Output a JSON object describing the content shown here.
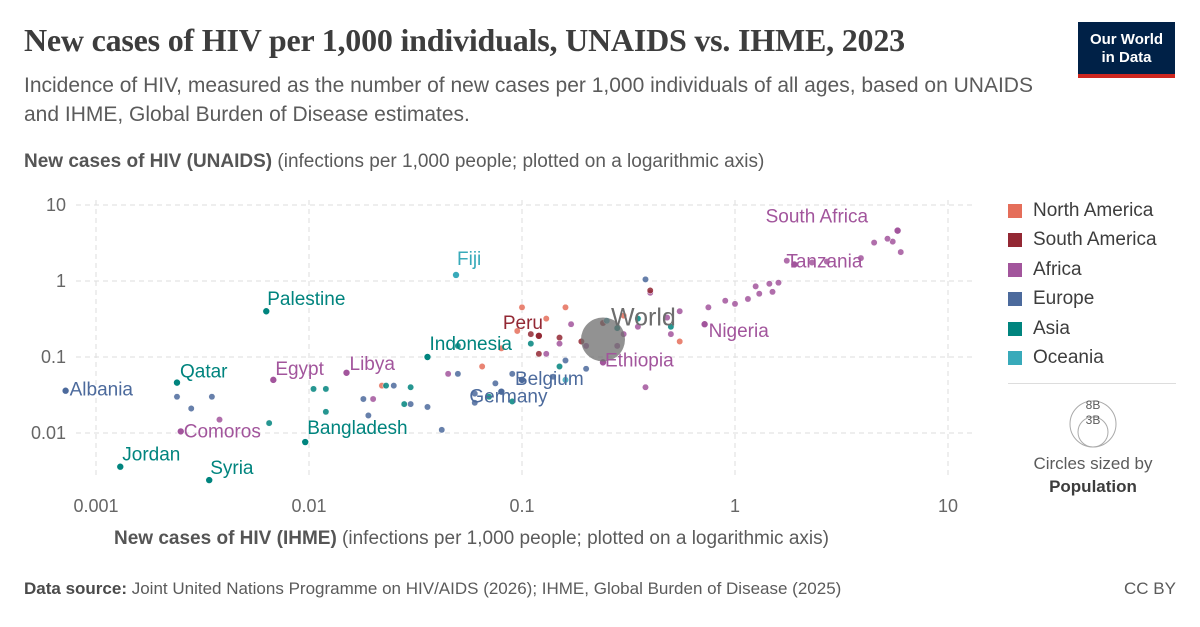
{
  "header": {
    "title": "New cases of HIV per 1,000 individuals, UNAIDS vs. IHME, 2023",
    "subtitle": "Incidence of HIV, measured as the number of new cases per 1,000 individuals of all ages, based on UNAIDS and IHME, Global Burden of Disease estimates."
  },
  "logo": {
    "line1": "Our World",
    "line2": "in Data",
    "bg": "#002147",
    "accent": "#ce261e"
  },
  "axis_labels": {
    "y_bold": "New cases of HIV (UNAIDS)",
    "y_rest": " (infections per 1,000 people; plotted on a logarithmic axis)",
    "x_bold": "New cases of HIV (IHME)",
    "x_rest": " (infections per 1,000 people; plotted on a logarithmic axis)"
  },
  "legend": {
    "items": [
      {
        "label": "North America",
        "color": "#E56E5A"
      },
      {
        "label": "South America",
        "color": "#932834"
      },
      {
        "label": "Africa",
        "color": "#A2559C"
      },
      {
        "label": "Europe",
        "color": "#4C6A9C"
      },
      {
        "label": "Asia",
        "color": "#00847E"
      },
      {
        "label": "Oceania",
        "color": "#38AABA"
      }
    ],
    "size_big": "8B",
    "size_small": "3B",
    "size_caption": "Circles sized by",
    "size_metric": "Population"
  },
  "footer": {
    "source_label": "Data source:",
    "source_text": " Joint United Nations Programme on HIV/AIDS (2026); IHME, Global Burden of Disease (2025)",
    "license": "CC BY"
  },
  "chart_data": {
    "type": "scatter",
    "x_scale": "log",
    "y_scale": "log",
    "xlim": [
      0.0007,
      10
    ],
    "ylim": [
      0.002,
      10
    ],
    "x_ticks": [
      0.001,
      0.01,
      0.1,
      1,
      10
    ],
    "x_tick_labels": [
      "0.001",
      "0.01",
      "0.1",
      "1",
      "10"
    ],
    "y_ticks": [
      0.01,
      0.1,
      1,
      10
    ],
    "y_tick_labels": [
      "0.01",
      "0.1",
      "1",
      "10"
    ],
    "grid": true,
    "legend_position": "right",
    "region_colors": {
      "North America": "#E56E5A",
      "South America": "#932834",
      "Africa": "#A2559C",
      "Europe": "#4C6A9C",
      "Asia": "#00847E",
      "Oceania": "#38AABA",
      "World": "#6D6D6D"
    },
    "labeled_points": [
      {
        "label": "South Africa",
        "region": "Africa",
        "x": 5.8,
        "y": 4.6
      },
      {
        "label": "Tanzania",
        "region": "Africa",
        "x": 1.9,
        "y": 1.65
      },
      {
        "label": "Nigeria",
        "region": "Africa",
        "x": 0.72,
        "y": 0.27
      },
      {
        "label": "Ethiopia",
        "region": "Africa",
        "x": 0.24,
        "y": 0.085
      },
      {
        "label": "Fiji",
        "region": "Oceania",
        "x": 0.049,
        "y": 1.2
      },
      {
        "label": "World",
        "region": "World",
        "x": 0.24,
        "y": 0.17,
        "world": true
      },
      {
        "label": "Peru",
        "region": "South America",
        "x": 0.12,
        "y": 0.19
      },
      {
        "label": "Indonesia",
        "region": "Asia",
        "x": 0.036,
        "y": 0.1
      },
      {
        "label": "Palestine",
        "region": "Asia",
        "x": 0.0063,
        "y": 0.4
      },
      {
        "label": "Egypt",
        "region": "Africa",
        "x": 0.0068,
        "y": 0.05
      },
      {
        "label": "Libya",
        "region": "Africa",
        "x": 0.015,
        "y": 0.062
      },
      {
        "label": "Qatar",
        "region": "Asia",
        "x": 0.0024,
        "y": 0.046
      },
      {
        "label": "Albania",
        "region": "Europe",
        "x": 0.00072,
        "y": 0.036
      },
      {
        "label": "Germany",
        "region": "Europe",
        "x": 0.08,
        "y": 0.035
      },
      {
        "label": "Belgium",
        "region": "Europe",
        "x": 0.1,
        "y": 0.05
      },
      {
        "label": "Comoros",
        "region": "Africa",
        "x": 0.0025,
        "y": 0.0105
      },
      {
        "label": "Bangladesh",
        "region": "Asia",
        "x": 0.0096,
        "y": 0.0076
      },
      {
        "label": "Jordan",
        "region": "Asia",
        "x": 0.0013,
        "y": 0.0036
      },
      {
        "label": "Syria",
        "region": "Asia",
        "x": 0.0034,
        "y": 0.0024
      }
    ],
    "points": [
      {
        "region": "Africa",
        "x": 5.5,
        "y": 3.3
      },
      {
        "region": "Africa",
        "x": 6.0,
        "y": 2.4
      },
      {
        "region": "Africa",
        "x": 5.2,
        "y": 3.6
      },
      {
        "region": "Africa",
        "x": 4.5,
        "y": 3.2
      },
      {
        "region": "Africa",
        "x": 3.9,
        "y": 2.0
      },
      {
        "region": "Africa",
        "x": 2.7,
        "y": 1.8
      },
      {
        "region": "Africa",
        "x": 2.3,
        "y": 1.75
      },
      {
        "region": "Africa",
        "x": 1.75,
        "y": 1.85
      },
      {
        "region": "Africa",
        "x": 1.6,
        "y": 0.95
      },
      {
        "region": "Africa",
        "x": 1.45,
        "y": 0.92
      },
      {
        "region": "Africa",
        "x": 1.25,
        "y": 0.85
      },
      {
        "region": "Africa",
        "x": 1.3,
        "y": 0.68
      },
      {
        "region": "Africa",
        "x": 1.5,
        "y": 0.72
      },
      {
        "region": "Africa",
        "x": 1.15,
        "y": 0.58
      },
      {
        "region": "Africa",
        "x": 1.0,
        "y": 0.5
      },
      {
        "region": "Africa",
        "x": 0.9,
        "y": 0.55
      },
      {
        "region": "Africa",
        "x": 0.75,
        "y": 0.45
      },
      {
        "region": "Africa",
        "x": 0.55,
        "y": 0.4
      },
      {
        "region": "Africa",
        "x": 0.48,
        "y": 0.33
      },
      {
        "region": "Africa",
        "x": 0.5,
        "y": 0.2
      },
      {
        "region": "Africa",
        "x": 0.35,
        "y": 0.25
      },
      {
        "region": "Africa",
        "x": 0.3,
        "y": 0.2
      },
      {
        "region": "Africa",
        "x": 0.28,
        "y": 0.14
      },
      {
        "region": "Africa",
        "x": 0.38,
        "y": 0.04
      },
      {
        "region": "Africa",
        "x": 0.2,
        "y": 0.14
      },
      {
        "region": "Africa",
        "x": 0.17,
        "y": 0.27
      },
      {
        "region": "Africa",
        "x": 0.15,
        "y": 0.15
      },
      {
        "region": "Africa",
        "x": 0.13,
        "y": 0.11
      },
      {
        "region": "Africa",
        "x": 0.4,
        "y": 0.7
      },
      {
        "region": "Africa",
        "x": 0.045,
        "y": 0.06
      },
      {
        "region": "Africa",
        "x": 0.02,
        "y": 0.028
      },
      {
        "region": "Africa",
        "x": 0.0038,
        "y": 0.015
      },
      {
        "region": "South America",
        "x": 0.4,
        "y": 0.75
      },
      {
        "region": "South America",
        "x": 0.24,
        "y": 0.28
      },
      {
        "region": "South America",
        "x": 0.11,
        "y": 0.2
      },
      {
        "region": "South America",
        "x": 0.19,
        "y": 0.16
      },
      {
        "region": "South America",
        "x": 0.15,
        "y": 0.18
      },
      {
        "region": "South America",
        "x": 0.12,
        "y": 0.11
      },
      {
        "region": "North America",
        "x": 0.55,
        "y": 0.16
      },
      {
        "region": "North America",
        "x": 0.3,
        "y": 0.35
      },
      {
        "region": "North America",
        "x": 0.16,
        "y": 0.45
      },
      {
        "region": "North America",
        "x": 0.1,
        "y": 0.45
      },
      {
        "region": "North America",
        "x": 0.095,
        "y": 0.22
      },
      {
        "region": "North America",
        "x": 0.08,
        "y": 0.13
      },
      {
        "region": "North America",
        "x": 0.065,
        "y": 0.075
      },
      {
        "region": "North America",
        "x": 0.022,
        "y": 0.042
      },
      {
        "region": "North America",
        "x": 0.13,
        "y": 0.32
      },
      {
        "region": "Europe",
        "x": 0.38,
        "y": 1.05
      },
      {
        "region": "Europe",
        "x": 0.2,
        "y": 0.07
      },
      {
        "region": "Europe",
        "x": 0.16,
        "y": 0.09
      },
      {
        "region": "Europe",
        "x": 0.14,
        "y": 0.055
      },
      {
        "region": "Europe",
        "x": 0.09,
        "y": 0.06
      },
      {
        "region": "Europe",
        "x": 0.075,
        "y": 0.045
      },
      {
        "region": "Europe",
        "x": 0.06,
        "y": 0.025
      },
      {
        "region": "Europe",
        "x": 0.05,
        "y": 0.06
      },
      {
        "region": "Europe",
        "x": 0.042,
        "y": 0.011
      },
      {
        "region": "Europe",
        "x": 0.036,
        "y": 0.022
      },
      {
        "region": "Europe",
        "x": 0.03,
        "y": 0.024
      },
      {
        "region": "Europe",
        "x": 0.025,
        "y": 0.042
      },
      {
        "region": "Europe",
        "x": 0.019,
        "y": 0.017
      },
      {
        "region": "Europe",
        "x": 0.018,
        "y": 0.028
      },
      {
        "region": "Europe",
        "x": 0.0035,
        "y": 0.03
      },
      {
        "region": "Europe",
        "x": 0.0028,
        "y": 0.021
      },
      {
        "region": "Europe",
        "x": 0.0024,
        "y": 0.03
      },
      {
        "region": "Europe",
        "x": 0.06,
        "y": 0.033
      },
      {
        "region": "Asia",
        "x": 0.35,
        "y": 0.32
      },
      {
        "region": "Asia",
        "x": 0.28,
        "y": 0.24
      },
      {
        "region": "Asia",
        "x": 0.15,
        "y": 0.075
      },
      {
        "region": "Asia",
        "x": 0.11,
        "y": 0.15
      },
      {
        "region": "Asia",
        "x": 0.09,
        "y": 0.026
      },
      {
        "region": "Asia",
        "x": 0.07,
        "y": 0.03
      },
      {
        "region": "Asia",
        "x": 0.05,
        "y": 0.14
      },
      {
        "region": "Asia",
        "x": 0.03,
        "y": 0.04
      },
      {
        "region": "Asia",
        "x": 0.028,
        "y": 0.024
      },
      {
        "region": "Asia",
        "x": 0.023,
        "y": 0.042
      },
      {
        "region": "Asia",
        "x": 0.012,
        "y": 0.019
      },
      {
        "region": "Asia",
        "x": 0.012,
        "y": 0.038
      },
      {
        "region": "Asia",
        "x": 0.0105,
        "y": 0.038
      },
      {
        "region": "Asia",
        "x": 0.0065,
        "y": 0.0135
      },
      {
        "region": "Asia",
        "x": 0.5,
        "y": 0.25
      },
      {
        "region": "Oceania",
        "x": 0.25,
        "y": 0.3
      },
      {
        "region": "Oceania",
        "x": 0.16,
        "y": 0.05
      }
    ]
  }
}
